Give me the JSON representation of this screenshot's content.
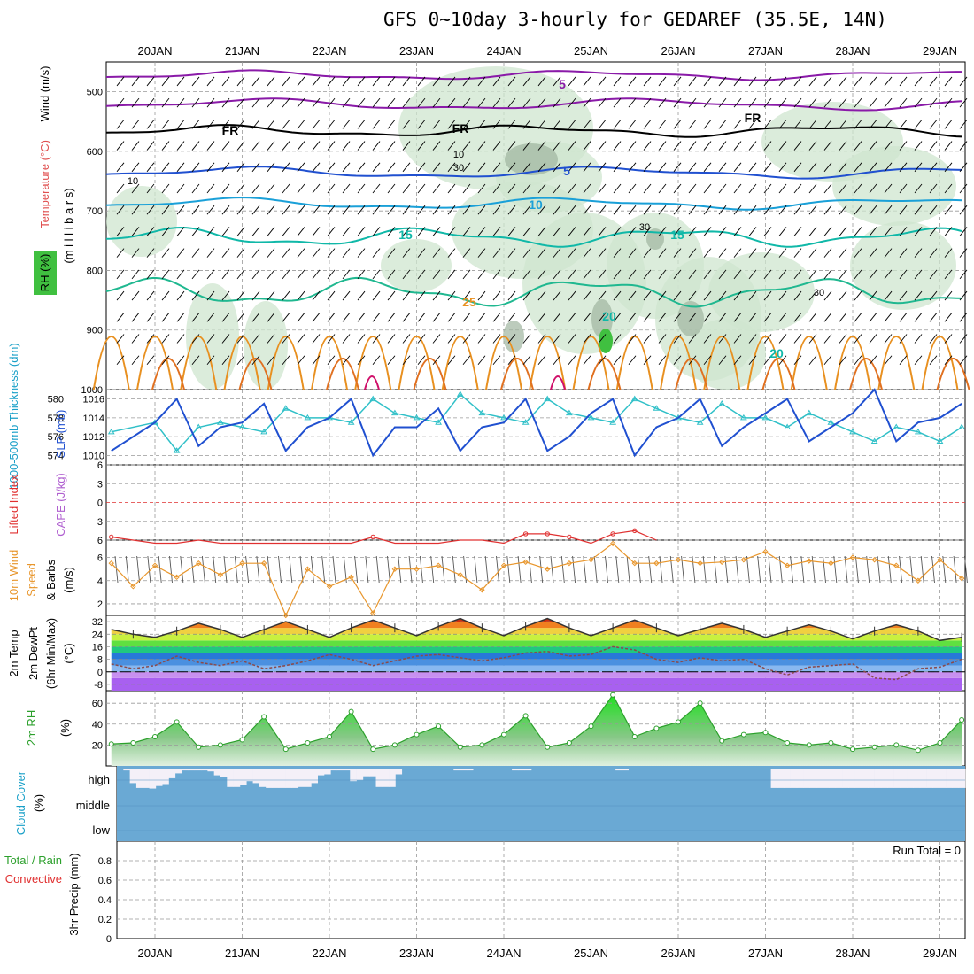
{
  "title": "GFS 0~10day 3-hourly for GEDAREF (35.5E, 14N)",
  "dates": [
    "20JAN",
    "21JAN",
    "22JAN",
    "23JAN",
    "24JAN",
    "25JAN",
    "26JAN",
    "27JAN",
    "28JAN",
    "29JAN"
  ],
  "colors": {
    "rh_fill": "#cfe6cf",
    "cloud": "#6aa9d4",
    "purple": "#8a1aa8",
    "blue": "#2050d0",
    "cyan": "#1aa0d8",
    "teal": "#10b8a8",
    "orange": "#e89020",
    "magenta": "#d0106a",
    "lifted": "#e03030",
    "wind_orange": "#e8962c",
    "rh_green": "#2ca02c"
  },
  "labels": {
    "upper_wind": "Wind (m/s)",
    "upper_temp": "Temperature (°C)",
    "upper_rh": "RH (%)",
    "upper_mb": "(m i l l i b a r s)",
    "thick": "1000-500mb Thickness (dm)",
    "slp": "SLP (mb)",
    "li": "Lifted Index",
    "cape": "CAPE (J/kg)",
    "wind10_a": "10m Wind",
    "wind10_b": "Speed",
    "wind10_c": "& Barbs",
    "wind10_unit": "(m/s)",
    "temp_a": "2m Temp",
    "temp_b": "2m DewPt",
    "temp_c": "(6hr Min/Max)",
    "temp_unit": "(°C)",
    "rh2m": "2m RH",
    "rh2m_unit": "(%)",
    "cloud_a": "Cloud Cover",
    "cloud_unit": "(%)",
    "cloud_high": "high",
    "cloud_middle": "middle",
    "cloud_low": "low",
    "precip_a": "3hr Precip (mm)",
    "precip_b": "Total / Rain",
    "precip_c": "Convective",
    "run_total": "Run Total = 0"
  },
  "chart_data": [
    {
      "id": "upper_air",
      "type": "contour",
      "ylabel": "millibars",
      "yticks": [
        500,
        600,
        700,
        800,
        900,
        1000
      ],
      "ylim": [
        1000,
        450
      ],
      "temperature_contour_labels": [
        "5",
        "FR",
        "FR",
        "FR",
        "5",
        "10",
        "15",
        "15",
        "25",
        "20",
        "20"
      ],
      "rh_contour_labels": [
        "10",
        "30",
        "10",
        "30",
        "30"
      ],
      "temperature_isotherms_c": [
        -5,
        0,
        5,
        10,
        15,
        20,
        25,
        30
      ]
    },
    {
      "id": "slp_thickness",
      "type": "line",
      "x_days": [
        19.5,
        20,
        20.25,
        20.5,
        20.75,
        21,
        21.25,
        21.5,
        21.75,
        22,
        22.25,
        22.5,
        22.75,
        23,
        23.25,
        23.5,
        23.75,
        24,
        24.25,
        24.5,
        24.75,
        25,
        25.25,
        25.5,
        25.75,
        26,
        26.25,
        26.5,
        26.75,
        27,
        27.25,
        27.5,
        27.75,
        28,
        28.25,
        28.5,
        28.75,
        29,
        29.25
      ],
      "series": [
        {
          "name": "SLP (mb)",
          "yaxis": "right",
          "values": [
            1010.5,
            1013.5,
            1016,
            1011,
            1013,
            1013.5,
            1015.5,
            1010.5,
            1013,
            1014,
            1016,
            1010,
            1013,
            1013,
            1015,
            1010.5,
            1013,
            1013.5,
            1016,
            1010.5,
            1012,
            1014.5,
            1016,
            1010,
            1013,
            1014,
            1016,
            1011,
            1013,
            1014.5,
            1016,
            1011.5,
            1013,
            1014.5,
            1017,
            1011.5,
            1013.5,
            1014,
            1015.5
          ]
        },
        {
          "name": "1000-500mb Thickness (dm)",
          "yaxis": "left",
          "values": [
            576.5,
            577.5,
            574.5,
            577,
            577.5,
            577,
            576.5,
            579,
            578,
            578,
            577.5,
            580,
            578.5,
            578,
            577.5,
            580.5,
            578.5,
            578,
            577.5,
            580,
            578.5,
            578,
            577.5,
            580,
            579,
            578,
            577.5,
            579.5,
            578,
            578,
            577,
            578.5,
            577.5,
            576.5,
            575.5,
            577,
            576.5,
            575.5,
            577
          ]
        }
      ],
      "ylim_left": [
        573,
        581
      ],
      "yticks_left": [
        574,
        576,
        578,
        580
      ],
      "ylim_right": [
        1009,
        1017
      ],
      "yticks_right": [
        1010,
        1012,
        1014,
        1016
      ]
    },
    {
      "id": "stability",
      "type": "line",
      "x_days": [
        19.5,
        19.75,
        20,
        20.25,
        20.5,
        20.75,
        21,
        21.25,
        21.5,
        21.75,
        22,
        22.25,
        22.5,
        22.75,
        23,
        23.25,
        23.5,
        23.75,
        24,
        24.25,
        24.5,
        24.75,
        25,
        25.25,
        25.5,
        25.75
      ],
      "series": [
        {
          "name": "Lifted Index",
          "values": [
            5.5,
            6,
            6.5,
            6.5,
            6,
            6.5,
            6.5,
            6.5,
            6.5,
            6.5,
            6.5,
            6.5,
            5.5,
            6.5,
            6.5,
            6.5,
            6,
            6,
            6.5,
            5,
            5,
            5.5,
            6.5,
            5,
            4.5,
            6
          ]
        }
      ],
      "ylim": [
        6,
        -6
      ],
      "yticks": [
        -6,
        -3,
        0,
        3,
        6
      ],
      "zero_line": 0
    },
    {
      "id": "wind10m",
      "type": "line",
      "x_days": [
        19.5,
        19.75,
        20,
        20.25,
        20.5,
        20.75,
        21,
        21.25,
        21.5,
        21.75,
        22,
        22.25,
        22.5,
        22.75,
        23,
        23.25,
        23.5,
        23.75,
        24,
        24.25,
        24.5,
        24.75,
        25,
        25.25,
        25.5,
        25.75,
        26,
        26.25,
        26.5,
        26.75,
        27,
        27.25,
        27.5,
        27.75,
        28,
        28.25,
        28.5,
        28.75,
        29,
        29.25
      ],
      "series": [
        {
          "name": "10m Wind Speed (m/s)",
          "values": [
            5.5,
            3.5,
            5.3,
            4.3,
            5.5,
            4.5,
            5.5,
            5.5,
            1,
            5,
            3.5,
            4.3,
            1.2,
            5,
            5,
            5.3,
            4.5,
            3.2,
            5.3,
            5.6,
            5,
            5.5,
            5.8,
            7.2,
            5.5,
            5.5,
            5.8,
            5.5,
            5.6,
            5.8,
            6.5,
            5.3,
            5.7,
            5.5,
            6,
            5.8,
            5.3,
            4,
            5.8,
            4.2
          ]
        }
      ],
      "ylim": [
        1,
        7.5
      ],
      "yticks": [
        2,
        4,
        6
      ]
    },
    {
      "id": "temp2m",
      "type": "area",
      "x_days": [
        19.5,
        19.75,
        20,
        20.25,
        20.5,
        20.75,
        21,
        21.25,
        21.5,
        21.75,
        22,
        22.25,
        22.5,
        22.75,
        23,
        23.25,
        23.5,
        23.75,
        24,
        24.25,
        24.5,
        24.75,
        25,
        25.25,
        25.5,
        25.75,
        26,
        26.25,
        26.5,
        26.75,
        27,
        27.25,
        27.5,
        27.75,
        28,
        28.25,
        28.5,
        28.75,
        29,
        29.25
      ],
      "series": [
        {
          "name": "2m Temp",
          "values": [
            27,
            24,
            22,
            26,
            31,
            27,
            22,
            27,
            32,
            27,
            22,
            28,
            33,
            28,
            23,
            29,
            34,
            28,
            23,
            29,
            34,
            28,
            23,
            28,
            33,
            28,
            23,
            27,
            31,
            27,
            22,
            26,
            30,
            26,
            21,
            26,
            30,
            26,
            20,
            22
          ]
        },
        {
          "name": "2m DewPt",
          "values": [
            5,
            2,
            4,
            10,
            6,
            4,
            7,
            2,
            4,
            7,
            11,
            8,
            4,
            7,
            10,
            11,
            9,
            7,
            9,
            12,
            13,
            10,
            11,
            16,
            14,
            8,
            6,
            9,
            7,
            8,
            2,
            -2,
            3,
            4,
            5,
            -4,
            -5,
            2,
            3,
            8
          ]
        }
      ],
      "ylim": [
        -12,
        36
      ],
      "yticks": [
        -8,
        0,
        8,
        16,
        24,
        32
      ]
    },
    {
      "id": "rh2m",
      "type": "area",
      "x_days": [
        19.5,
        19.75,
        20,
        20.25,
        20.5,
        20.75,
        21,
        21.25,
        21.5,
        21.75,
        22,
        22.25,
        22.5,
        22.75,
        23,
        23.25,
        23.5,
        23.75,
        24,
        24.25,
        24.5,
        24.75,
        25,
        25.25,
        25.5,
        25.75,
        26,
        26.25,
        26.5,
        26.75,
        27,
        27.25,
        27.5,
        27.75,
        28,
        28.25,
        28.5,
        28.75,
        29,
        29.25
      ],
      "series": [
        {
          "name": "2m RH (%)",
          "values": [
            21,
            22,
            28,
            42,
            18,
            20,
            25,
            47,
            16,
            22,
            28,
            52,
            16,
            20,
            30,
            38,
            18,
            20,
            30,
            48,
            18,
            22,
            38,
            68,
            28,
            36,
            42,
            60,
            24,
            30,
            32,
            22,
            20,
            22,
            16,
            18,
            20,
            15,
            22,
            44
          ]
        }
      ],
      "ylim": [
        0,
        72
      ],
      "yticks": [
        20,
        40,
        60
      ]
    },
    {
      "id": "cloud_cover",
      "type": "bar",
      "yticks": [
        "high",
        "middle",
        "low"
      ],
      "series": [
        {
          "name": "high cloud clear fraction",
          "values": [
            0,
            0.05,
            0.7,
            0.95,
            0.95,
            0.98,
            0.85,
            0.75,
            0.45,
            0.2,
            0.05,
            0.05,
            0.05,
            0.05,
            0.1,
            0.3,
            0.4,
            0.9,
            0.9,
            0.8,
            0.6,
            0.7,
            0.9,
            0.95,
            0.95,
            0.95,
            0.95,
            0.95,
            0.9,
            0.9,
            0.7,
            0.3,
            0.25,
            0.05,
            0.05,
            0.05,
            0.6,
            0.55,
            0.35,
            0.35,
            0.9,
            0.9,
            0.9,
            0.25,
            0,
            0,
            0,
            0,
            0,
            0,
            0,
            0,
            0.05,
            0.05,
            0.05,
            0,
            0,
            0,
            0,
            0,
            0,
            0.05,
            0.05,
            0.05,
            0,
            0,
            0,
            0,
            0,
            0,
            0,
            0,
            0,
            0,
            0,
            0,
            0,
            0.05,
            0.05,
            0,
            0,
            0,
            0,
            0,
            0,
            0,
            0,
            0,
            0,
            0,
            0,
            0,
            0,
            0,
            0,
            0,
            0,
            0,
            0,
            0,
            0,
            0.95,
            0.95,
            0.95,
            0.95,
            0.95,
            0.95,
            0.95,
            0.95,
            0.95,
            0.95,
            0.95,
            0.95,
            0.95,
            0.95,
            0.95,
            0.95,
            0.95,
            0.95,
            0.95,
            0.95,
            0.95,
            0.95,
            0.95,
            0.95,
            0.95,
            0.95,
            0.95,
            0.95,
            0.95,
            0.95
          ]
        }
      ]
    },
    {
      "id": "precip",
      "type": "bar",
      "ylim": [
        0,
        1
      ],
      "yticks": [
        0,
        0.2,
        0.4,
        0.6,
        0.8
      ],
      "ytick_labels": [
        "0",
        "0.2",
        "0.4",
        "0.6",
        "0.8"
      ],
      "series": [
        {
          "name": "3hr Precip Total/Rain",
          "values": []
        },
        {
          "name": "Convective",
          "values": []
        }
      ]
    }
  ]
}
